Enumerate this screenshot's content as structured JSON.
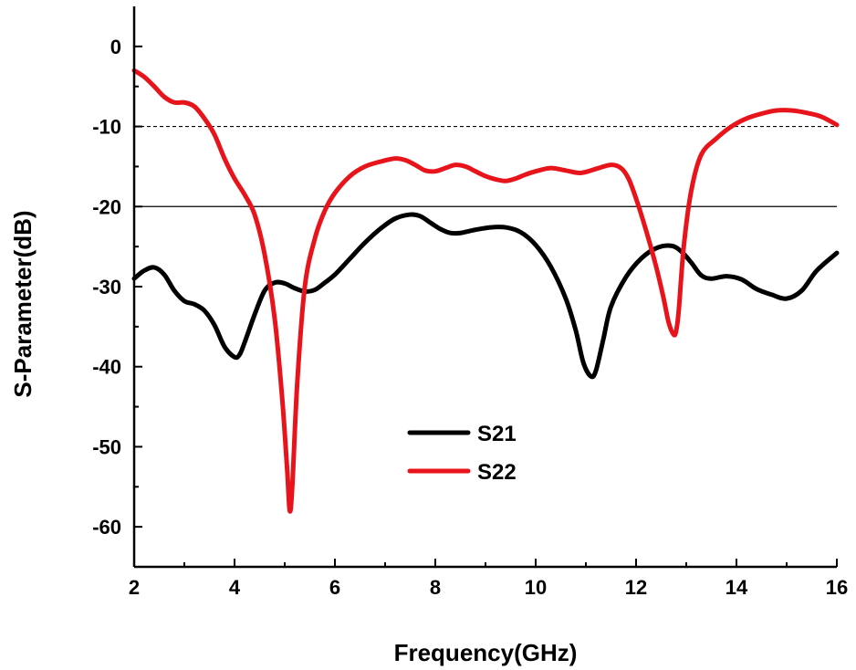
{
  "chart_data": {
    "type": "line",
    "xlabel": "Frequency(GHz)",
    "ylabel": "S-Parameter(dB)",
    "xlim": [
      2,
      16
    ],
    "ylim": [
      -65,
      5
    ],
    "xticks": [
      2,
      4,
      6,
      8,
      10,
      12,
      14,
      16
    ],
    "yticks": [
      0,
      -10,
      -20,
      -30,
      -40,
      -50,
      -60
    ],
    "xtick_labels": [
      "2",
      "4",
      "6",
      "8",
      "10",
      "12",
      "14",
      "16"
    ],
    "ytick_labels": [
      "0",
      "-10",
      "-20",
      "-30",
      "-40",
      "-50",
      "-60"
    ],
    "reference_lines": [
      {
        "y": -10,
        "style": "dashed",
        "color": "#000000"
      },
      {
        "y": -20,
        "style": "solid",
        "color": "#000000"
      }
    ],
    "legend_position": "center-bottom",
    "series": [
      {
        "name": "S21",
        "color": "#000000",
        "x": [
          2.0,
          2.2,
          2.4,
          2.6,
          2.8,
          3.0,
          3.2,
          3.4,
          3.6,
          3.8,
          4.0,
          4.1,
          4.2,
          4.4,
          4.6,
          4.8,
          5.0,
          5.2,
          5.4,
          5.6,
          5.8,
          6.0,
          6.3,
          6.6,
          6.9,
          7.2,
          7.5,
          7.7,
          7.9,
          8.1,
          8.3,
          8.5,
          8.8,
          9.1,
          9.4,
          9.7,
          10.0,
          10.3,
          10.6,
          10.8,
          10.95,
          11.1,
          11.2,
          11.35,
          11.5,
          11.8,
          12.1,
          12.4,
          12.7,
          12.9,
          13.1,
          13.3,
          13.5,
          13.8,
          14.1,
          14.4,
          14.7,
          15.0,
          15.3,
          15.6,
          16.0
        ],
        "y": [
          -29.0,
          -28.0,
          -27.6,
          -28.5,
          -30.5,
          -31.8,
          -32.2,
          -33.0,
          -34.8,
          -37.5,
          -38.8,
          -38.5,
          -37.0,
          -33.5,
          -30.5,
          -29.5,
          -29.6,
          -30.2,
          -30.6,
          -30.4,
          -29.5,
          -28.5,
          -26.5,
          -24.5,
          -22.8,
          -21.5,
          -21.0,
          -21.2,
          -22.0,
          -22.8,
          -23.3,
          -23.3,
          -22.9,
          -22.6,
          -22.6,
          -23.2,
          -24.8,
          -27.5,
          -31.5,
          -35.5,
          -39.5,
          -41.2,
          -40.5,
          -36.5,
          -32.5,
          -28.8,
          -26.5,
          -25.2,
          -24.9,
          -25.6,
          -27.0,
          -28.6,
          -29.0,
          -28.7,
          -29.1,
          -30.3,
          -31.0,
          -31.5,
          -30.5,
          -28.0,
          -25.8
        ]
      },
      {
        "name": "S22",
        "color": "#e8141b",
        "x": [
          2.0,
          2.2,
          2.4,
          2.6,
          2.8,
          3.0,
          3.2,
          3.4,
          3.6,
          3.8,
          4.0,
          4.2,
          4.4,
          4.6,
          4.8,
          4.95,
          5.05,
          5.1,
          5.15,
          5.25,
          5.4,
          5.6,
          5.8,
          6.0,
          6.3,
          6.6,
          6.9,
          7.2,
          7.4,
          7.6,
          7.8,
          8.0,
          8.2,
          8.4,
          8.6,
          8.8,
          9.0,
          9.2,
          9.4,
          9.6,
          9.8,
          10.0,
          10.3,
          10.6,
          10.9,
          11.2,
          11.5,
          11.7,
          11.85,
          12.0,
          12.2,
          12.4,
          12.55,
          12.65,
          12.75,
          12.8,
          12.85,
          12.95,
          13.1,
          13.3,
          13.6,
          13.9,
          14.2,
          14.5,
          14.8,
          15.1,
          15.4,
          15.7,
          16.0
        ],
        "y": [
          -3.0,
          -3.8,
          -5.0,
          -6.3,
          -7.0,
          -7.0,
          -7.5,
          -9.0,
          -11.0,
          -14.0,
          -16.5,
          -18.5,
          -21.0,
          -26.0,
          -34.0,
          -44.0,
          -53.0,
          -58.0,
          -55.0,
          -42.0,
          -30.0,
          -24.0,
          -20.5,
          -18.3,
          -16.2,
          -15.0,
          -14.4,
          -14.0,
          -14.2,
          -14.8,
          -15.5,
          -15.6,
          -15.2,
          -14.8,
          -15.0,
          -15.6,
          -16.2,
          -16.6,
          -16.8,
          -16.5,
          -16.0,
          -15.6,
          -15.2,
          -15.5,
          -15.8,
          -15.3,
          -14.8,
          -15.2,
          -16.5,
          -19.0,
          -23.0,
          -27.5,
          -31.5,
          -34.5,
          -36.0,
          -35.5,
          -33.0,
          -25.0,
          -18.0,
          -13.5,
          -11.5,
          -10.0,
          -9.0,
          -8.4,
          -8.0,
          -8.0,
          -8.3,
          -8.8,
          -9.8
        ]
      }
    ]
  }
}
